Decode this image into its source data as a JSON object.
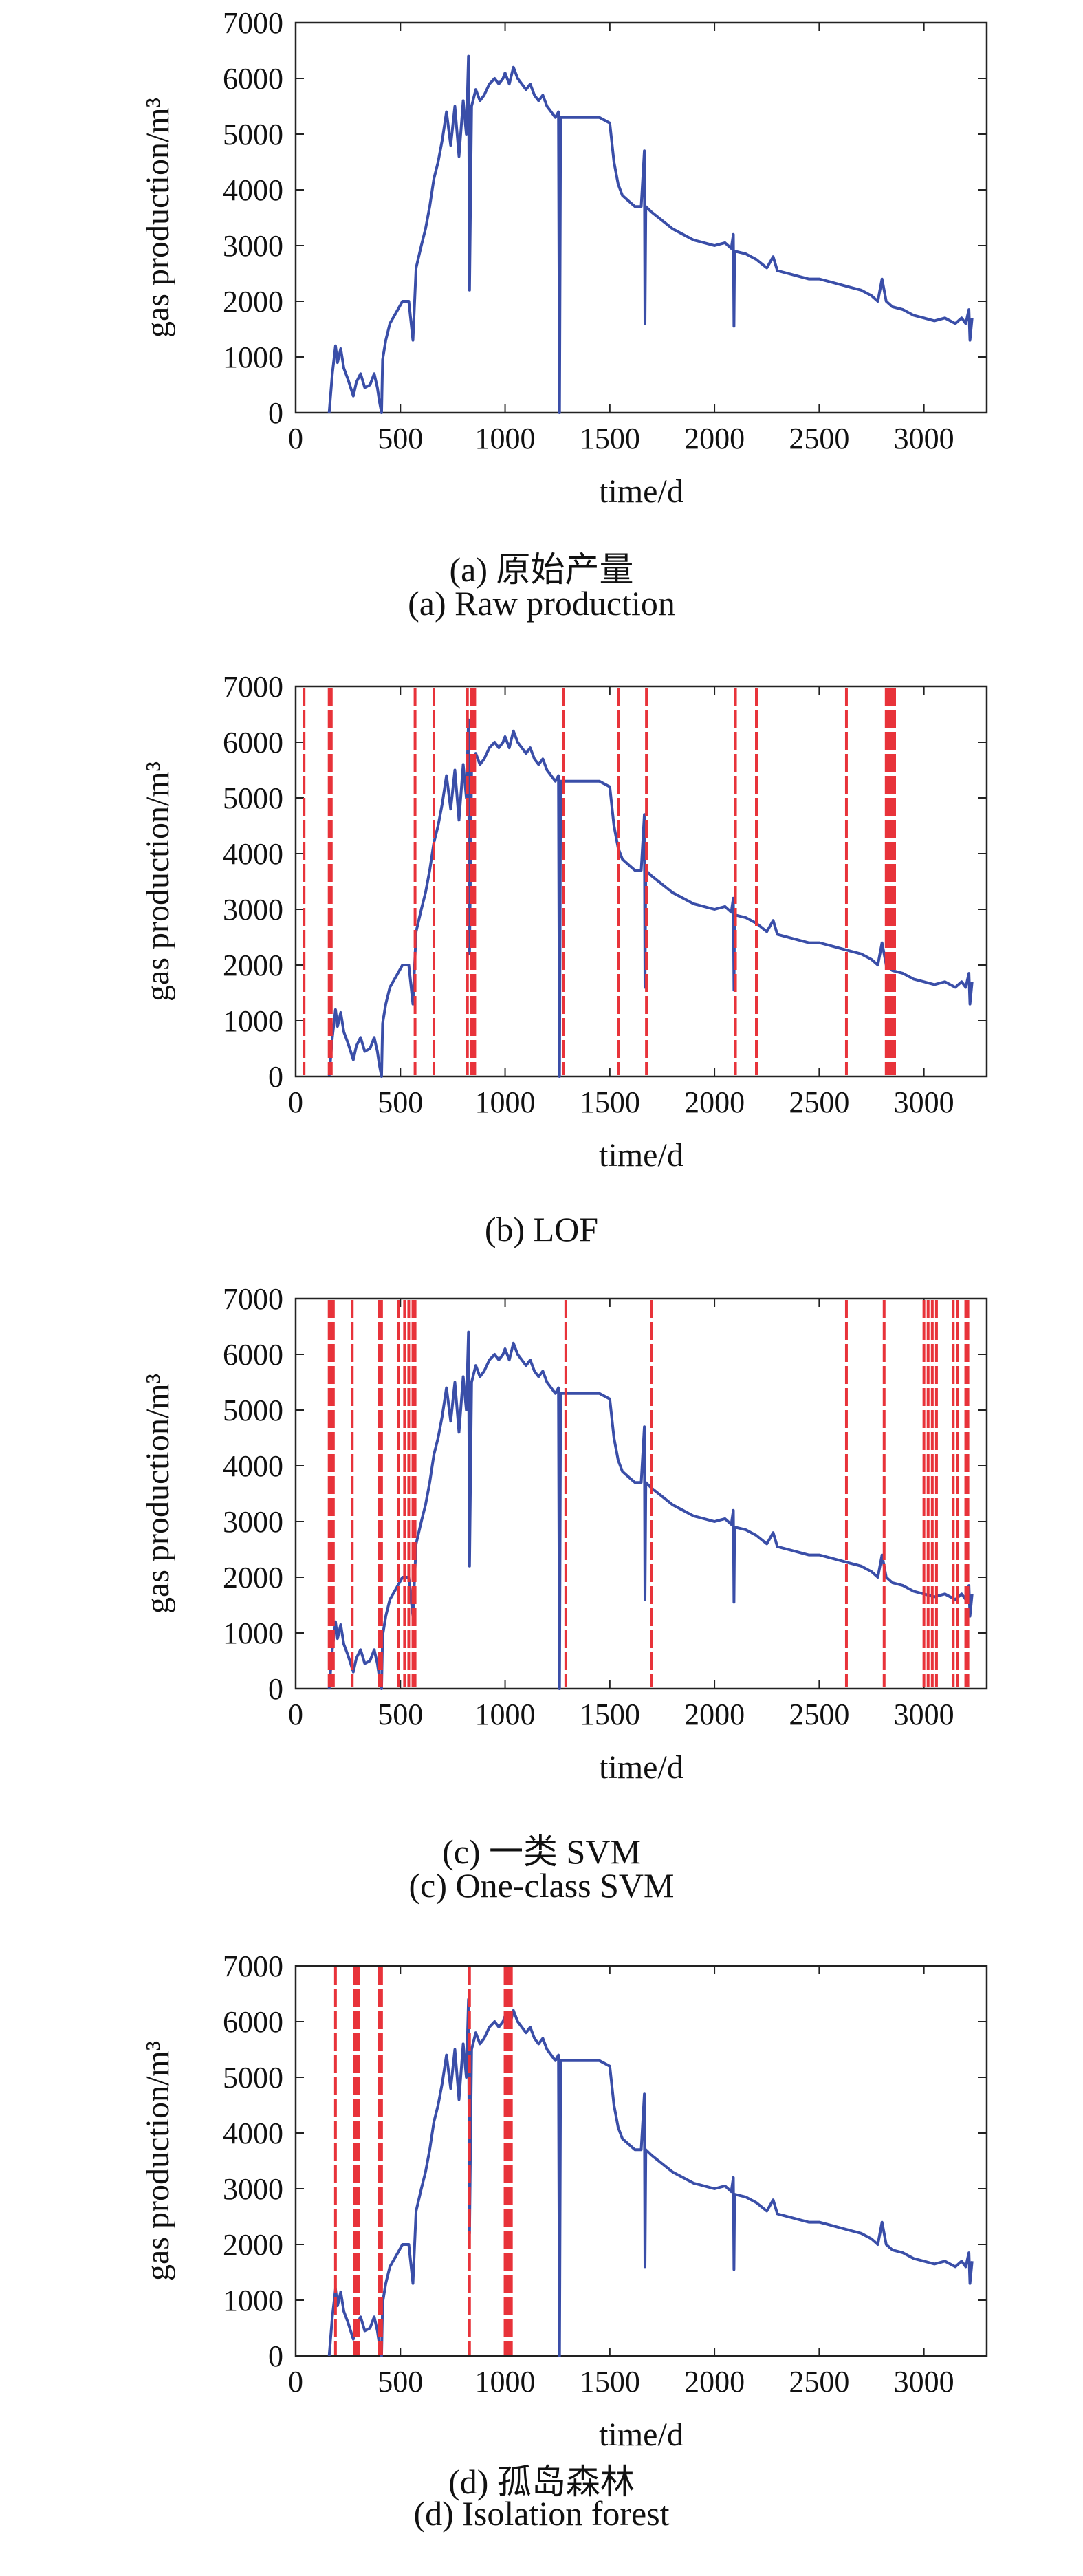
{
  "figure": {
    "panels": [
      {
        "caption_zh": "(a) 原始产量",
        "caption_en": "(a) Raw production"
      },
      {
        "caption_zh": "",
        "caption_en": "(b) LOF"
      },
      {
        "caption_zh": "(c) 一类 SVM",
        "caption_en": "(c) One-class SVM"
      },
      {
        "caption_zh": "(d) 孤岛森林",
        "caption_en": "(d) Isolation forest"
      }
    ]
  },
  "colors": {
    "series": "#3a4ea8",
    "anomaly": "#e8333a",
    "axis": "#222222"
  },
  "chart_data": [
    {
      "type": "line",
      "title": "",
      "xlabel": "time/d",
      "ylabel": "gas production/m³",
      "xlim": [
        0,
        3300
      ],
      "ylim": [
        0,
        7000
      ],
      "xticks": [
        0,
        500,
        1000,
        1500,
        2000,
        2500,
        3000
      ],
      "yticks": [
        0,
        1000,
        2000,
        3000,
        4000,
        5000,
        6000,
        7000
      ],
      "grid": false,
      "series": [
        {
          "points": [
            [
              160,
              0
            ],
            [
              175,
              700
            ],
            [
              190,
              1200
            ],
            [
              200,
              900
            ],
            [
              215,
              1150
            ],
            [
              230,
              800
            ],
            [
              250,
              600
            ],
            [
              275,
              300
            ],
            [
              290,
              550
            ],
            [
              310,
              700
            ],
            [
              330,
              450
            ],
            [
              355,
              500
            ],
            [
              375,
              700
            ],
            [
              390,
              450
            ],
            [
              400,
              200
            ],
            [
              410,
              0
            ],
            [
              415,
              950
            ],
            [
              430,
              1300
            ],
            [
              450,
              1600
            ],
            [
              480,
              1800
            ],
            [
              510,
              2000
            ],
            [
              540,
              2000
            ],
            [
              560,
              1300
            ],
            [
              575,
              2600
            ],
            [
              600,
              3000
            ],
            [
              620,
              3300
            ],
            [
              640,
              3700
            ],
            [
              660,
              4200
            ],
            [
              680,
              4500
            ],
            [
              700,
              4900
            ],
            [
              720,
              5400
            ],
            [
              740,
              4800
            ],
            [
              760,
              5500
            ],
            [
              780,
              4600
            ],
            [
              800,
              5600
            ],
            [
              815,
              5000
            ],
            [
              825,
              6400
            ],
            [
              830,
              2200
            ],
            [
              840,
              5500
            ],
            [
              860,
              5800
            ],
            [
              880,
              5600
            ],
            [
              900,
              5700
            ],
            [
              925,
              5900
            ],
            [
              950,
              6000
            ],
            [
              970,
              5900
            ],
            [
              990,
              6000
            ],
            [
              1000,
              6100
            ],
            [
              1020,
              5900
            ],
            [
              1040,
              6200
            ],
            [
              1060,
              6000
            ],
            [
              1080,
              5900
            ],
            [
              1100,
              5800
            ],
            [
              1120,
              5900
            ],
            [
              1140,
              5700
            ],
            [
              1160,
              5600
            ],
            [
              1180,
              5700
            ],
            [
              1200,
              5500
            ],
            [
              1220,
              5400
            ],
            [
              1240,
              5300
            ],
            [
              1255,
              5400
            ],
            [
              1260,
              0
            ],
            [
              1265,
              5300
            ],
            [
              1300,
              5300
            ],
            [
              1350,
              5300
            ],
            [
              1400,
              5300
            ],
            [
              1450,
              5300
            ],
            [
              1500,
              5200
            ],
            [
              1520,
              4500
            ],
            [
              1540,
              4100
            ],
            [
              1560,
              3900
            ],
            [
              1590,
              3800
            ],
            [
              1620,
              3700
            ],
            [
              1650,
              3700
            ],
            [
              1665,
              4700
            ],
            [
              1668,
              1600
            ],
            [
              1672,
              3700
            ],
            [
              1700,
              3600
            ],
            [
              1750,
              3450
            ],
            [
              1800,
              3300
            ],
            [
              1850,
              3200
            ],
            [
              1900,
              3100
            ],
            [
              1950,
              3050
            ],
            [
              2000,
              3000
            ],
            [
              2050,
              3050
            ],
            [
              2080,
              2950
            ],
            [
              2090,
              3200
            ],
            [
              2093,
              1550
            ],
            [
              2096,
              2900
            ],
            [
              2150,
              2850
            ],
            [
              2200,
              2750
            ],
            [
              2250,
              2600
            ],
            [
              2280,
              2800
            ],
            [
              2300,
              2550
            ],
            [
              2350,
              2500
            ],
            [
              2400,
              2450
            ],
            [
              2450,
              2400
            ],
            [
              2500,
              2400
            ],
            [
              2550,
              2350
            ],
            [
              2600,
              2300
            ],
            [
              2650,
              2250
            ],
            [
              2700,
              2200
            ],
            [
              2750,
              2100
            ],
            [
              2780,
              2000
            ],
            [
              2800,
              2400
            ],
            [
              2820,
              2000
            ],
            [
              2850,
              1900
            ],
            [
              2900,
              1850
            ],
            [
              2950,
              1750
            ],
            [
              3000,
              1700
            ],
            [
              3050,
              1650
            ],
            [
              3100,
              1700
            ],
            [
              3150,
              1600
            ],
            [
              3180,
              1700
            ],
            [
              3200,
              1600
            ],
            [
              3215,
              1850
            ],
            [
              3220,
              1300
            ],
            [
              3230,
              1700
            ]
          ]
        }
      ],
      "anomalies": []
    },
    {
      "type": "line",
      "title": "",
      "xlabel": "time/d",
      "ylabel": "gas production/m³",
      "xlim": [
        0,
        3300
      ],
      "ylim": [
        0,
        7000
      ],
      "xticks": [
        0,
        500,
        1000,
        1500,
        2000,
        2500,
        3000
      ],
      "yticks": [
        0,
        1000,
        2000,
        3000,
        4000,
        5000,
        6000,
        7000
      ],
      "grid": false,
      "series": [
        {
          "same_as_panel": 0
        }
      ],
      "anomalies": [
        40,
        160,
        165,
        170,
        570,
        660,
        820,
        840,
        845,
        850,
        855,
        1280,
        1540,
        1675,
        2100,
        2200,
        2630,
        2820,
        2830,
        2840,
        2850,
        2860
      ]
    },
    {
      "type": "line",
      "title": "",
      "xlabel": "time/d",
      "ylabel": "gas production/m³",
      "xlim": [
        0,
        3300
      ],
      "ylim": [
        0,
        7000
      ],
      "xticks": [
        0,
        500,
        1000,
        1500,
        2000,
        2500,
        3000
      ],
      "yticks": [
        0,
        1000,
        2000,
        3000,
        4000,
        5000,
        6000,
        7000
      ],
      "grid": false,
      "series": [
        {
          "same_as_panel": 0
        }
      ],
      "anomalies": [
        160,
        170,
        180,
        270,
        400,
        410,
        490,
        520,
        540,
        560,
        570,
        1290,
        1700,
        2630,
        2810,
        3000,
        3020,
        3040,
        3060,
        3140,
        3160,
        3200,
        3210
      ]
    },
    {
      "type": "line",
      "title": "",
      "xlabel": "time/d",
      "ylabel": "gas production/m³",
      "xlim": [
        0,
        3300
      ],
      "ylim": [
        0,
        7000
      ],
      "xticks": [
        0,
        500,
        1000,
        1500,
        2000,
        2500,
        3000
      ],
      "yticks": [
        0,
        1000,
        2000,
        3000,
        4000,
        5000,
        6000,
        7000
      ],
      "grid": false,
      "series": [
        {
          "same_as_panel": 0
        }
      ],
      "anomalies": [
        190,
        280,
        290,
        300,
        400,
        410,
        830,
        1000,
        1010,
        1020,
        1030
      ]
    }
  ]
}
